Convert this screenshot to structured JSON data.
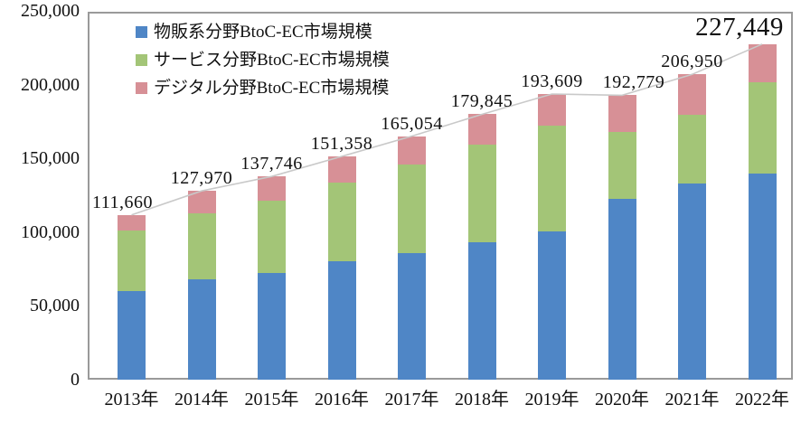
{
  "chart_data": {
    "type": "bar",
    "stacked": true,
    "title": "",
    "categories": [
      "2013年",
      "2014年",
      "2015年",
      "2016年",
      "2017年",
      "2018年",
      "2019年",
      "2020年",
      "2021年",
      "2022年"
    ],
    "series": [
      {
        "name": "物販系分野BtoC-EC市場規模",
        "color": "#4f86c6",
        "values": [
          59931,
          68042,
          72398,
          80043,
          86008,
          92992,
          100515,
          122333,
          132865,
          139997
        ]
      },
      {
        "name": "サービス分野BtoC-EC市場規模",
        "color": "#a3c577",
        "values": [
          41210,
          44816,
          49014,
          53532,
          59568,
          66471,
          71672,
          45832,
          46424,
          61477
        ]
      },
      {
        "name": "デジタル分野BtoC-EC市場規模",
        "color": "#d79096",
        "values": [
          10519,
          15111,
          16334,
          17782,
          19478,
          20382,
          21422,
          24614,
          27661,
          25974
        ]
      }
    ],
    "total_labels": [
      "111,660",
      "127,970",
      "137,746",
      "151,358",
      "165,054",
      "179,845",
      "193,609",
      "192,779",
      "206,950",
      "227,449"
    ],
    "y_axis": {
      "ticks": [
        "0",
        "50,000",
        "100,000",
        "150,000",
        "200,000",
        "250,000"
      ],
      "min": 0,
      "max": 250000
    },
    "legend_position": "top-left-inside",
    "grid": false,
    "trend_line_color": "#c9c9c9",
    "axis_border_color": "#9a9a9a"
  }
}
